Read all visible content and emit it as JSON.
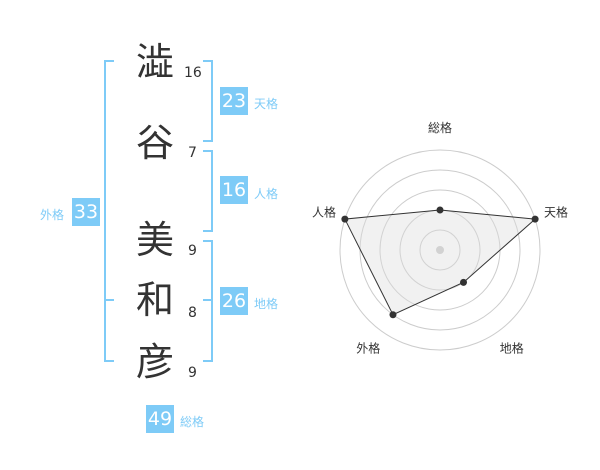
{
  "name": {
    "chars": [
      {
        "char": "澁",
        "strokes": "16"
      },
      {
        "char": "谷",
        "strokes": "7"
      },
      {
        "char": "美",
        "strokes": "9"
      },
      {
        "char": "和",
        "strokes": "8"
      },
      {
        "char": "彦",
        "strokes": "9"
      }
    ]
  },
  "fortunes": {
    "tenkaku": {
      "label": "天格",
      "value": "23"
    },
    "jinkaku": {
      "label": "人格",
      "value": "16"
    },
    "chikaku": {
      "label": "地格",
      "value": "26"
    },
    "gaikaku": {
      "label": "外格",
      "value": "33"
    },
    "soukaku": {
      "label": "総格",
      "value": "49"
    }
  },
  "accent_color": "#7ecbf7",
  "chart_data": {
    "type": "radar",
    "axes": [
      "総格",
      "天格",
      "地格",
      "外格",
      "人格"
    ],
    "values": [
      2,
      5,
      2,
      4,
      5
    ],
    "range": [
      0,
      5
    ],
    "rings": 5
  }
}
